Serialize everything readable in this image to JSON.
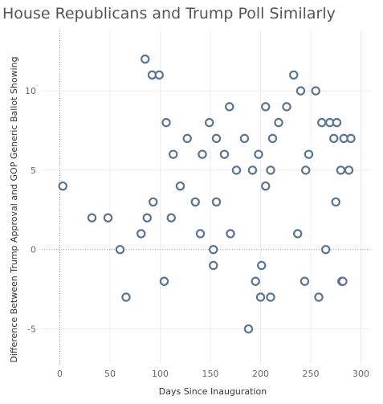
{
  "chart_data": {
    "type": "scatter",
    "title": "House Republicans and Trump Poll Similarly",
    "xlabel": "Days Since Inauguration",
    "ylabel": "Difference Between Trump Approval and GOP Generic Ballot Showing",
    "xlim": [
      -18,
      310
    ],
    "ylim": [
      -7.2,
      13.8
    ],
    "x_ticks": [
      0,
      50,
      100,
      150,
      200,
      250,
      300
    ],
    "y_ticks": [
      -5,
      0,
      5,
      10
    ],
    "grid": true,
    "marker_color": "#5b7490",
    "points": [
      {
        "x": 3,
        "y": 4
      },
      {
        "x": 32,
        "y": 2
      },
      {
        "x": 48,
        "y": 2
      },
      {
        "x": 60,
        "y": 0
      },
      {
        "x": 66,
        "y": -3
      },
      {
        "x": 81,
        "y": 1
      },
      {
        "x": 85,
        "y": 12
      },
      {
        "x": 87,
        "y": 2
      },
      {
        "x": 92,
        "y": 11
      },
      {
        "x": 93,
        "y": 3
      },
      {
        "x": 99,
        "y": 11
      },
      {
        "x": 104,
        "y": -2
      },
      {
        "x": 106,
        "y": 8
      },
      {
        "x": 111,
        "y": 2
      },
      {
        "x": 113,
        "y": 6
      },
      {
        "x": 120,
        "y": 4
      },
      {
        "x": 127,
        "y": 7
      },
      {
        "x": 135,
        "y": 3
      },
      {
        "x": 140,
        "y": 1
      },
      {
        "x": 142,
        "y": 6
      },
      {
        "x": 149,
        "y": 8
      },
      {
        "x": 153,
        "y": 0
      },
      {
        "x": 153,
        "y": -1
      },
      {
        "x": 156,
        "y": 3
      },
      {
        "x": 156,
        "y": 7
      },
      {
        "x": 164,
        "y": 6
      },
      {
        "x": 169,
        "y": 9
      },
      {
        "x": 170,
        "y": 1
      },
      {
        "x": 176,
        "y": 5
      },
      {
        "x": 184,
        "y": 7
      },
      {
        "x": 188,
        "y": -5
      },
      {
        "x": 192,
        "y": 5
      },
      {
        "x": 195,
        "y": -2
      },
      {
        "x": 198,
        "y": 6
      },
      {
        "x": 200,
        "y": -3
      },
      {
        "x": 201,
        "y": -1
      },
      {
        "x": 205,
        "y": 4
      },
      {
        "x": 205,
        "y": 9
      },
      {
        "x": 210,
        "y": -3
      },
      {
        "x": 210,
        "y": 5
      },
      {
        "x": 212,
        "y": 7
      },
      {
        "x": 218,
        "y": 8
      },
      {
        "x": 226,
        "y": 9
      },
      {
        "x": 233,
        "y": 11
      },
      {
        "x": 237,
        "y": 1
      },
      {
        "x": 240,
        "y": 10
      },
      {
        "x": 244,
        "y": -2
      },
      {
        "x": 245,
        "y": 5
      },
      {
        "x": 248,
        "y": 6
      },
      {
        "x": 255,
        "y": 10
      },
      {
        "x": 258,
        "y": -3
      },
      {
        "x": 261,
        "y": 8
      },
      {
        "x": 265,
        "y": 0
      },
      {
        "x": 269,
        "y": 8
      },
      {
        "x": 273,
        "y": 7
      },
      {
        "x": 275,
        "y": 3
      },
      {
        "x": 276,
        "y": 8
      },
      {
        "x": 280,
        "y": 5
      },
      {
        "x": 281,
        "y": -2
      },
      {
        "x": 282,
        "y": -2
      },
      {
        "x": 283,
        "y": 7
      },
      {
        "x": 288,
        "y": 5
      },
      {
        "x": 290,
        "y": 7
      }
    ]
  }
}
